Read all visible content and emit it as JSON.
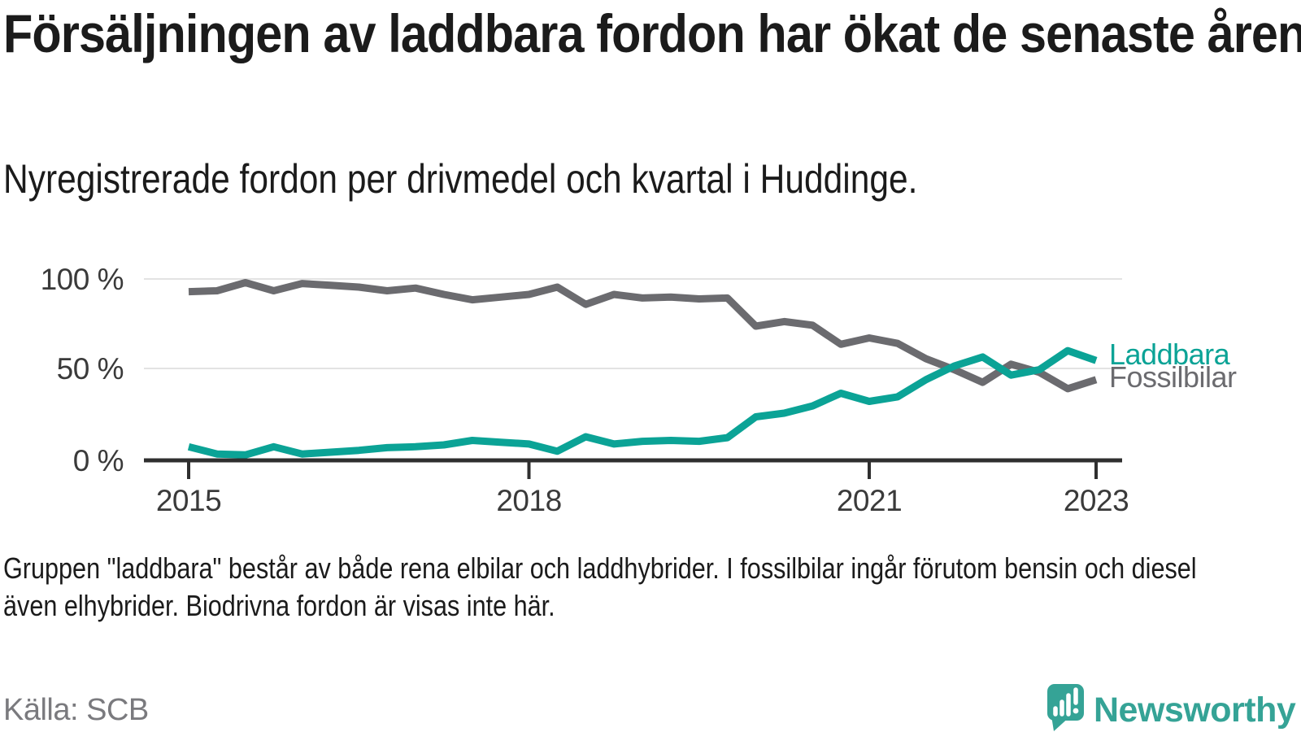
{
  "header": {
    "title": "Försäljningen av laddbara fordon har ökat de senaste åren",
    "subtitle": "Nyregistrerade fordon per drivmedel och kvartal i Huddinge."
  },
  "chart_data": {
    "type": "line",
    "title": "Försäljningen av laddbara fordon har ökat de senaste åren",
    "subtitle": "Nyregistrerade fordon per drivmedel och kvartal i Huddinge.",
    "y_unit": "%",
    "ylim": [
      0,
      100
    ],
    "grid": "horizontal",
    "legend_position": "line-end-labels",
    "x": [
      "2015-Q1",
      "2015-Q2",
      "2015-Q3",
      "2015-Q4",
      "2016-Q1",
      "2016-Q2",
      "2016-Q3",
      "2016-Q4",
      "2017-Q1",
      "2017-Q2",
      "2017-Q3",
      "2017-Q4",
      "2018-Q1",
      "2018-Q2",
      "2018-Q3",
      "2018-Q4",
      "2019-Q1",
      "2019-Q2",
      "2019-Q3",
      "2019-Q4",
      "2020-Q1",
      "2020-Q2",
      "2020-Q3",
      "2020-Q4",
      "2021-Q1",
      "2021-Q2",
      "2021-Q3",
      "2021-Q4",
      "2022-Q1",
      "2022-Q2",
      "2022-Q3",
      "2022-Q4",
      "2023-Q1"
    ],
    "series": [
      {
        "id": "laddbara",
        "name": "Laddbara",
        "color": "#0ba396",
        "values": [
          7.5,
          3.5,
          3,
          7.5,
          3.5,
          4.5,
          5.5,
          7,
          7.5,
          8.5,
          11,
          10,
          9,
          5,
          13,
          9,
          10.5,
          11,
          10.5,
          12.5,
          24,
          26,
          30,
          37,
          32.5,
          35,
          44.5,
          52,
          57,
          47,
          50,
          60.5,
          55
        ]
      },
      {
        "id": "fossilbilar",
        "name": "Fossilbilar",
        "color": "#6b6b6f",
        "values": [
          93,
          93.5,
          98,
          93.5,
          97.5,
          96.5,
          95.5,
          93.5,
          95,
          91.5,
          88.5,
          90,
          91.5,
          95.5,
          86,
          91.5,
          89.5,
          90,
          89,
          89.5,
          74,
          76.5,
          74.5,
          64,
          67.5,
          64.5,
          56,
          50,
          43,
          53,
          48.5,
          39.5,
          44.5
        ]
      }
    ],
    "ytick_labels": [
      "100 %",
      "50 %",
      "0 %"
    ],
    "ytick_values": [
      100,
      50,
      0
    ],
    "xtick_labels": [
      "2015",
      "2018",
      "2021",
      "2023"
    ],
    "xtick_indices": [
      0,
      12,
      24,
      32
    ]
  },
  "footnote": {
    "text": "Gruppen \"laddbara\" består av både rena elbilar och laddhybrider. I fossilbilar ingår förutom bensin och diesel även elhybrider. Biodrivna fordon är visas inte här."
  },
  "source": {
    "label": "Källa: SCB"
  },
  "branding": {
    "logo_text": "Newsworthy",
    "logo_icon": "newsworthy-bar-chart-bubble-icon",
    "logo_color": "#35a396"
  }
}
